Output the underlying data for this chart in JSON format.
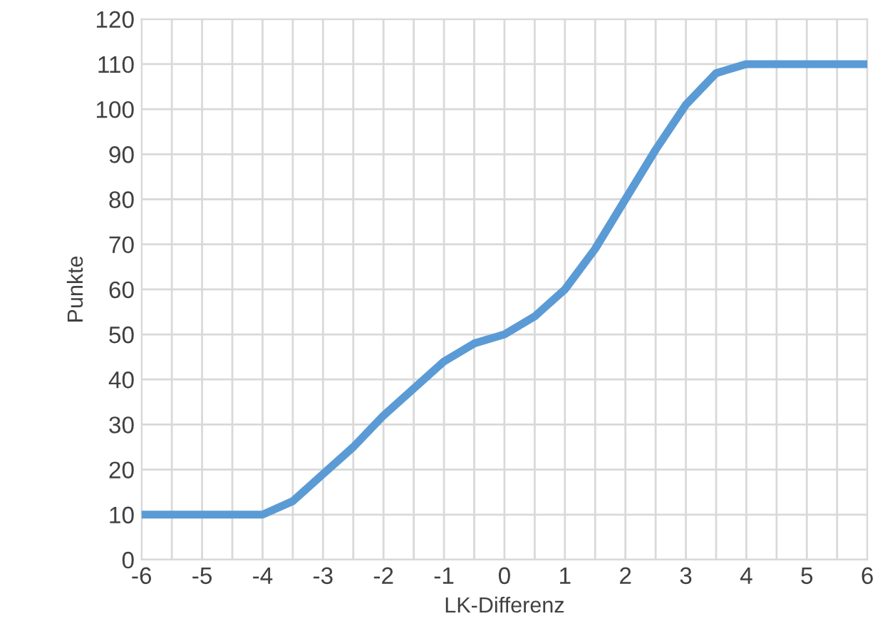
{
  "chart_data": {
    "type": "line",
    "xlabel": "LK-Differenz",
    "ylabel": "Punkte",
    "x": [
      -6,
      -5,
      -4.5,
      -4,
      -3.5,
      -3,
      -2.5,
      -2,
      -1.5,
      -1,
      -0.5,
      0,
      0.5,
      1,
      1.5,
      2,
      2.5,
      3,
      3.5,
      4,
      5,
      6
    ],
    "series": [
      {
        "color": "#5b9bd5",
        "values": [
          10,
          10,
          10,
          10,
          13,
          19,
          25,
          32,
          38,
          44,
          48,
          50,
          54,
          60,
          69,
          80,
          91,
          101,
          108,
          110,
          110,
          110
        ]
      }
    ],
    "xlim": [
      -6,
      6
    ],
    "xticks": [
      -6,
      {
        "value": -5.5,
        "label": null
      },
      -5,
      {
        "value": -4.5,
        "label": null
      },
      -4,
      {
        "value": -3.5,
        "label": null
      },
      -3,
      {
        "value": -2.5,
        "label": null
      },
      -2,
      {
        "value": -1.5,
        "label": null
      },
      -1,
      {
        "value": -0.5,
        "label": null
      },
      0,
      {
        "value": 0.5,
        "label": null
      },
      1,
      {
        "value": 1.5,
        "label": null
      },
      2,
      {
        "value": 2.5,
        "label": null
      },
      3,
      {
        "value": 3.5,
        "label": null
      },
      4,
      {
        "value": 4.5,
        "label": null
      },
      5,
      {
        "value": 5.5,
        "label": null
      },
      6
    ],
    "ylim": [
      0,
      120
    ],
    "yticks": [
      0,
      10,
      20,
      30,
      40,
      50,
      60,
      70,
      80,
      90,
      100,
      110,
      120
    ],
    "grid": true,
    "marker": "none",
    "line_style": "solid",
    "legend": false
  }
}
